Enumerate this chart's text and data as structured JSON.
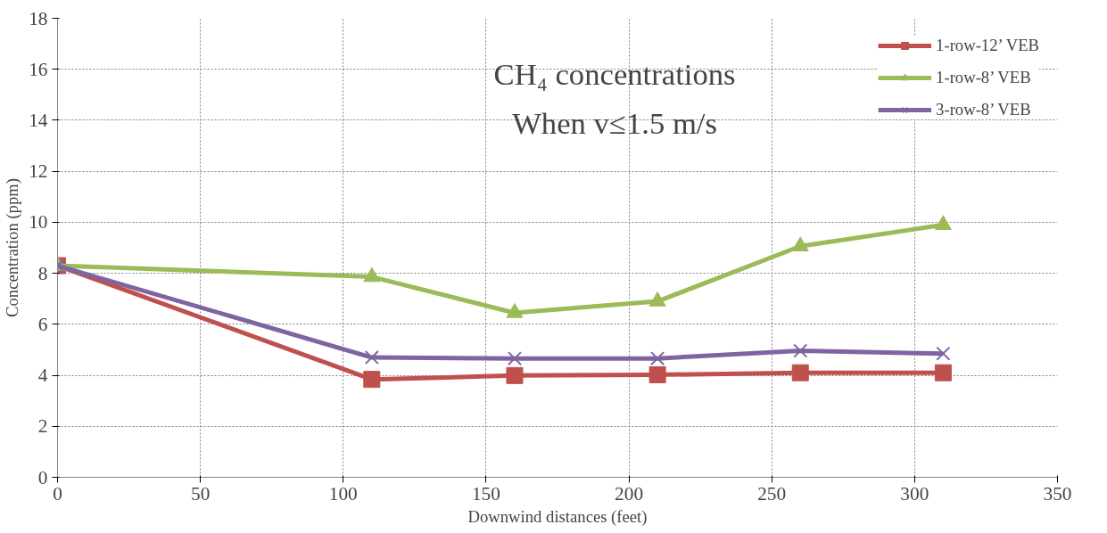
{
  "chart_data": {
    "type": "line",
    "title": "CH₄ concentrations",
    "subtitle": "When v≤1.5 m/s",
    "xlabel": "Downwind distances (feet)",
    "ylabel": "Concentration (ppm)",
    "x": [
      0,
      110,
      160,
      210,
      260,
      310
    ],
    "series": [
      {
        "name": "1-row-12’ VEB",
        "color": "#c0504d",
        "marker": "square",
        "values": [
          8.3,
          3.84,
          3.99,
          4.02,
          4.1,
          4.1
        ]
      },
      {
        "name": "1-row-8’ VEB",
        "color": "#9bbb59",
        "marker": "triangle",
        "values": [
          8.3,
          7.86,
          6.45,
          6.9,
          9.06,
          9.9
        ]
      },
      {
        "name": "3-row-8’ VEB",
        "color": "#8064a2",
        "marker": "cross",
        "values": [
          8.3,
          4.7,
          4.66,
          4.66,
          4.96,
          4.85
        ]
      }
    ],
    "xlim": [
      0,
      350
    ],
    "xticks": [
      0,
      50,
      100,
      150,
      200,
      250,
      300,
      350
    ],
    "ylim": [
      0,
      18
    ],
    "yticks": [
      0,
      2,
      4,
      6,
      8,
      10,
      12,
      14,
      16,
      18
    ],
    "grid": true,
    "legend": "top right",
    "line_style": "solid"
  }
}
